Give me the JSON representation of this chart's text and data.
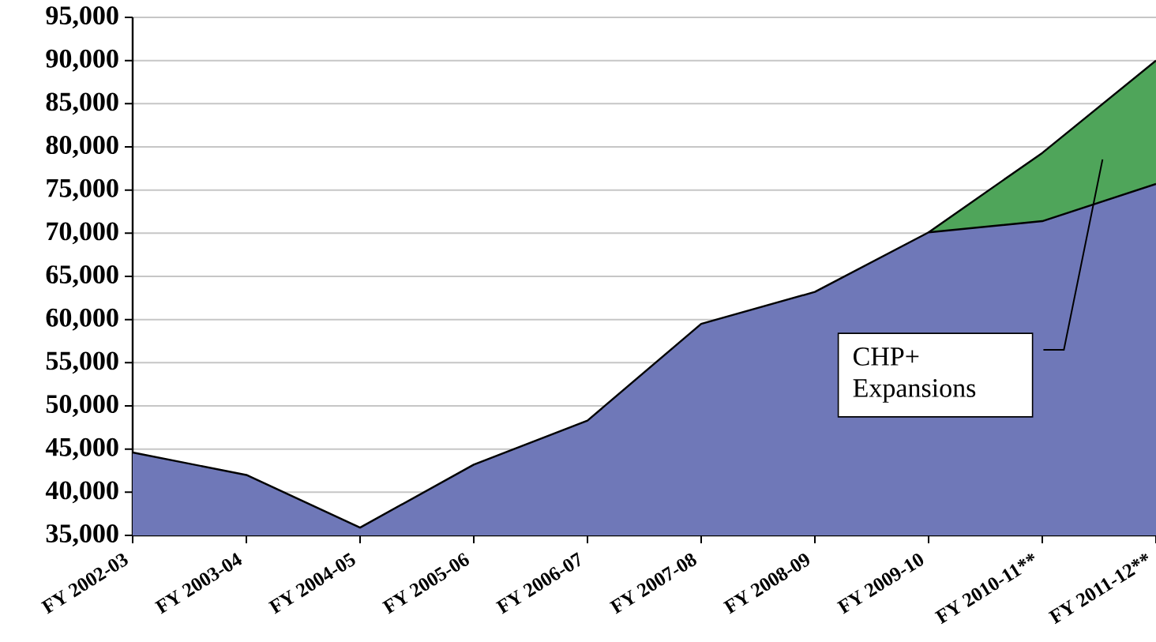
{
  "chart_data": {
    "type": "area",
    "grid": "y",
    "categories": [
      "FY 2002-03",
      "FY 2003-04",
      "FY 2004-05",
      "FY 2005-06",
      "FY 2006-07",
      "FY 2007-08",
      "FY 2008-09",
      "FY 2009-10",
      "FY 2010-11**",
      "FY 2011-12**"
    ],
    "series": [
      {
        "color": "#4fa55a",
        "values": [
          null,
          null,
          null,
          null,
          null,
          null,
          null,
          70100,
          79300,
          90000
        ]
      },
      {
        "color": "#6f78b8",
        "values": [
          44600,
          42000,
          35900,
          43200,
          48300,
          59500,
          63200,
          70100,
          71400,
          75700
        ]
      }
    ],
    "ylim": [
      35000,
      95000
    ],
    "yticks": [
      {
        "value": 35000,
        "label": "35,000"
      },
      {
        "value": 40000,
        "label": "40,000"
      },
      {
        "value": 45000,
        "label": "45,000"
      },
      {
        "value": 50000,
        "label": "50,000"
      },
      {
        "value": 55000,
        "label": "55,000"
      },
      {
        "value": 60000,
        "label": "60,000"
      },
      {
        "value": 65000,
        "label": "65,000"
      },
      {
        "value": 70000,
        "label": "70,000"
      },
      {
        "value": 75000,
        "label": "75,000"
      },
      {
        "value": 80000,
        "label": "80,000"
      },
      {
        "value": 85000,
        "label": "85,000"
      },
      {
        "value": 90000,
        "label": "90,000"
      },
      {
        "value": 95000,
        "label": "95,000"
      }
    ],
    "annotations": [
      "CHP+ Expansions"
    ]
  }
}
